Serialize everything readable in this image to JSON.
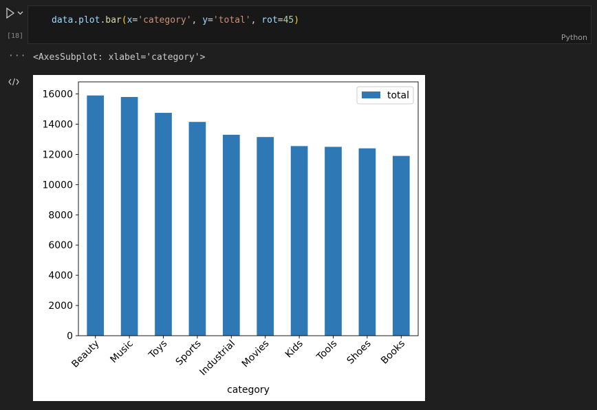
{
  "cell": {
    "execution_count": "[18]",
    "language": "Python",
    "code": {
      "t1": "data",
      "t2": ".",
      "t3": "plot",
      "t4": ".",
      "t5": "bar",
      "t6": "(",
      "t7": "x",
      "t8": "=",
      "t9": "'category'",
      "t10": ", ",
      "t11": "y",
      "t12": "=",
      "t13": "'total'",
      "t14": ", ",
      "t15": "rot",
      "t16": "=",
      "t17": "45",
      "t18": ")"
    }
  },
  "output": {
    "more_label": "···",
    "text": "<AxesSubplot: xlabel='category'>"
  },
  "chart_data": {
    "type": "bar",
    "categories": [
      "Beauty",
      "Music",
      "Toys",
      "Sports",
      "Industrial",
      "Movies",
      "Kids",
      "Tools",
      "Shoes",
      "Books"
    ],
    "series": [
      {
        "name": "total",
        "values": [
          15900,
          15800,
          14750,
          14150,
          13300,
          13150,
          12550,
          12500,
          12400,
          11900
        ]
      }
    ],
    "xlabel": "category",
    "ylabel": "",
    "ylim": [
      0,
      16800
    ],
    "yticks": [
      0,
      2000,
      4000,
      6000,
      8000,
      10000,
      12000,
      14000,
      16000
    ],
    "tick_rotation": 45,
    "legend": "upper right",
    "bar_color": "#2e79b5"
  }
}
